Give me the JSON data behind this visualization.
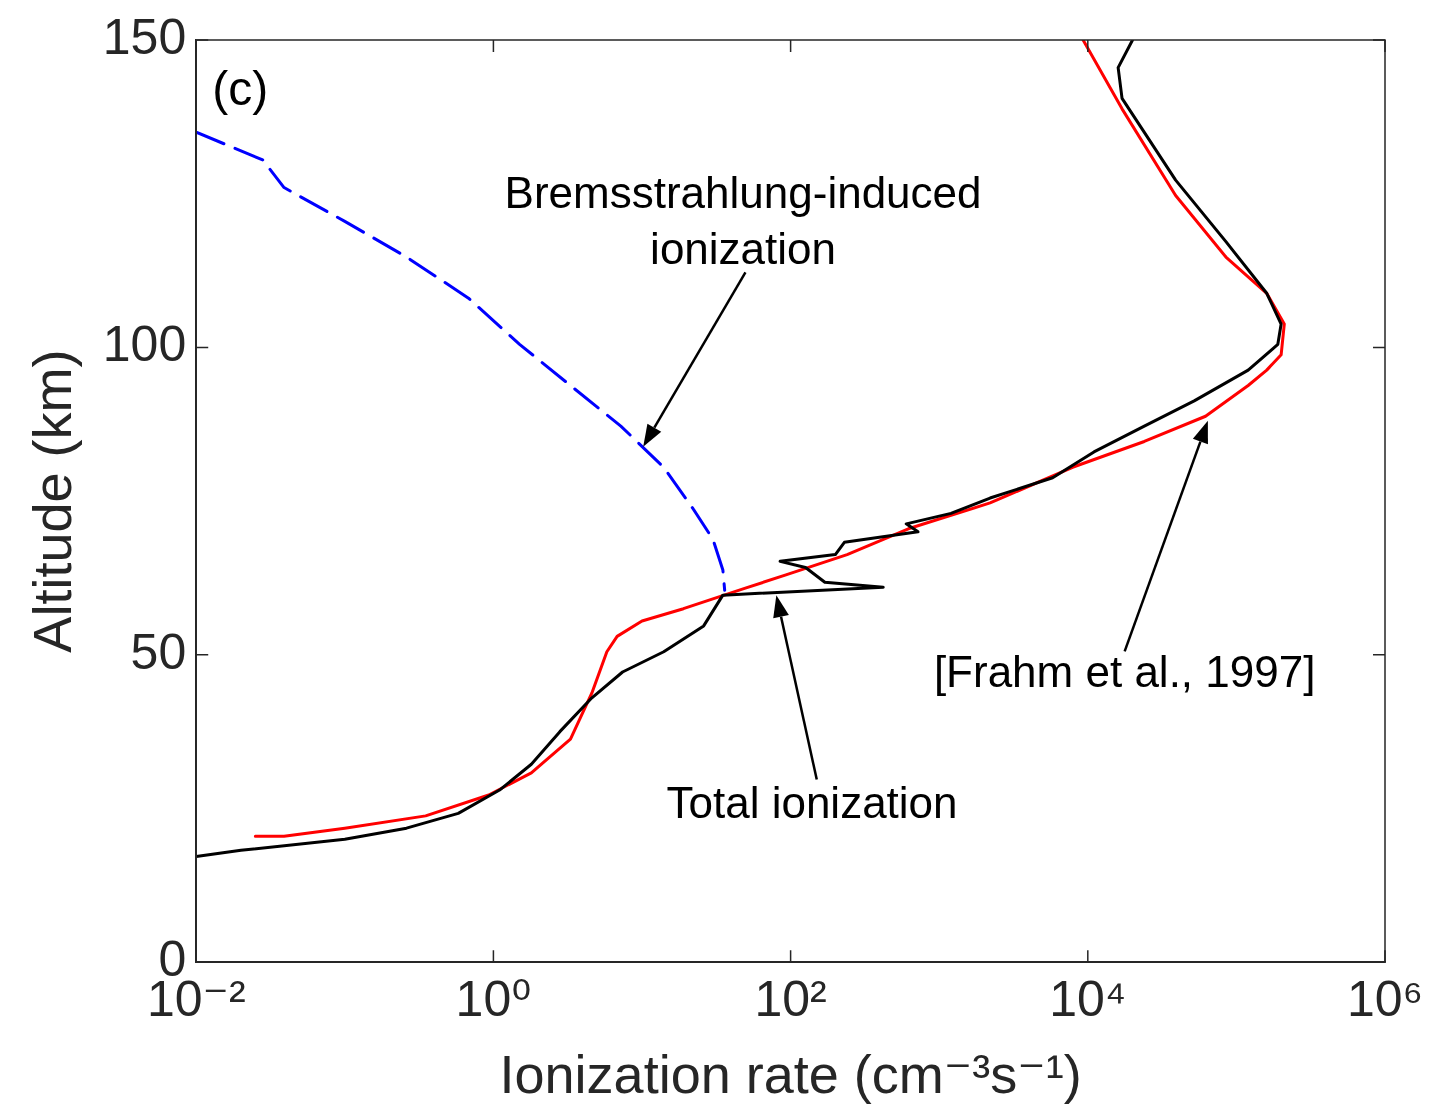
{
  "chart_data": {
    "type": "line",
    "xlabel": "Ionization rate (cm⁻³s⁻¹)",
    "ylabel": "Altitude (km)",
    "log": "x",
    "xlim": [
      0.01,
      1000000
    ],
    "xticks": [
      {
        "value": 0.01,
        "label": "10⁻²"
      },
      {
        "value": 1,
        "label": "10⁰"
      },
      {
        "value": 100,
        "label": "10²"
      },
      {
        "value": 10000,
        "label": "10⁴"
      },
      {
        "value": 1000000,
        "label": "10⁶"
      }
    ],
    "ylim": [
      0,
      150
    ],
    "yticks": [
      0,
      50,
      100,
      150
    ],
    "grid": false,
    "legend": false,
    "marker": "none",
    "annotations": [
      "(c)",
      "Bremsstrahlung-induced\nionization",
      "Total ionization",
      "[Frahm et al., 1997]"
    ],
    "series": [
      {
        "color": "#0000ff",
        "line_style": "dashed",
        "x": [
          0.01,
          0.028,
          0.039,
          0.1,
          0.26,
          0.68,
          1.5,
          3.3,
          7.2,
          14,
          22,
          30,
          35,
          36
        ],
        "values": [
          135,
          130.5,
          126,
          120.5,
          114.7,
          108,
          100.5,
          93.8,
          87.2,
          80.5,
          73.8,
          68.8,
          63.8,
          60.5
        ]
      },
      {
        "color": "#000000",
        "line_style": "solid",
        "x": [
          0.01,
          0.02,
          0.1,
          0.26,
          0.58,
          1.1,
          1.8,
          2.8,
          4.6,
          7.4,
          14,
          26,
          35,
          420,
          170,
          126,
          85,
          200,
          230,
          720,
          600,
          1200,
          2200,
          5800,
          11000,
          24000,
          52000,
          120000,
          190000,
          200000,
          160000,
          85000,
          39000,
          17000,
          16000,
          20000
        ],
        "values": [
          17.2,
          18.2,
          20,
          21.8,
          24.2,
          28,
          32.2,
          37.5,
          43,
          47.2,
          50.5,
          54.7,
          59.7,
          61,
          61.8,
          64.2,
          65.2,
          66.3,
          68.3,
          70,
          71.3,
          73,
          75.5,
          78.8,
          83,
          87.2,
          91.3,
          96.3,
          100.5,
          103.8,
          108.8,
          117.2,
          127.2,
          140.5,
          145.5,
          150
        ]
      },
      {
        "color": "#ff0000",
        "line_style": "solid",
        "x": [
          0.025,
          0.039,
          0.1,
          0.35,
          0.93,
          1.8,
          3.3,
          4.6,
          5.8,
          6.8,
          10,
          19,
          49,
          93,
          240,
          620,
          2200,
          7900,
          24000,
          62000,
          120000,
          160000,
          200000,
          210000,
          160000,
          85000,
          39000,
          17000,
          9300
        ],
        "values": [
          20.5,
          20.5,
          21.8,
          23.8,
          27.2,
          30.8,
          36.3,
          43.8,
          50.5,
          53,
          55.5,
          57.5,
          60.8,
          63,
          66.3,
          70.5,
          74.7,
          80.5,
          84.7,
          88.8,
          93.8,
          96.3,
          98.8,
          103.8,
          108.8,
          114.7,
          124.7,
          138.8,
          150
        ]
      }
    ]
  }
}
